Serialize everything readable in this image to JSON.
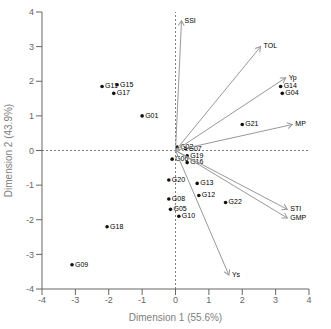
{
  "chart_data": {
    "type": "biplot",
    "xlabel": "Dimension 1 (55.6%)",
    "ylabel": "Dimension 2 (43.9%)",
    "xlim": [
      -4,
      4
    ],
    "ylim": [
      -4,
      4
    ],
    "xticks": [
      -4,
      -3,
      -2,
      -1,
      0,
      1,
      2,
      3,
      4
    ],
    "yticks": [
      -4,
      -3,
      -2,
      -1,
      0,
      1,
      2,
      3,
      4
    ],
    "grid": false,
    "series": [
      {
        "type": "scatter",
        "color": "#111111",
        "points": [
          {
            "label": "G01",
            "x": -1.0,
            "y": 1.0
          },
          {
            "label": "G02",
            "x": 0.05,
            "y": 0.1
          },
          {
            "label": "G04",
            "x": 3.2,
            "y": 1.65
          },
          {
            "label": "G05",
            "x": -0.15,
            "y": -1.7
          },
          {
            "label": "G06",
            "x": -0.1,
            "y": -0.25
          },
          {
            "label": "G07",
            "x": 0.3,
            "y": 0.05
          },
          {
            "label": "G08",
            "x": -0.2,
            "y": -1.4
          },
          {
            "label": "G09",
            "x": -3.1,
            "y": -3.3
          },
          {
            "label": "G10",
            "x": 0.1,
            "y": -1.9
          },
          {
            "label": "G11",
            "x": -2.2,
            "y": 1.85
          },
          {
            "label": "G12",
            "x": 0.7,
            "y": -1.3
          },
          {
            "label": "G13",
            "x": 0.65,
            "y": -0.95
          },
          {
            "label": "G14",
            "x": 3.15,
            "y": 1.85
          },
          {
            "label": "G15",
            "x": -1.75,
            "y": 1.9
          },
          {
            "label": "G16",
            "x": 0.35,
            "y": -0.35
          },
          {
            "label": "G17",
            "x": -1.85,
            "y": 1.65
          },
          {
            "label": "G18",
            "x": -2.05,
            "y": -2.2
          },
          {
            "label": "G19",
            "x": 0.35,
            "y": -0.15
          },
          {
            "label": "G20",
            "x": -0.2,
            "y": -0.85
          },
          {
            "label": "G21",
            "x": 2.0,
            "y": 0.75
          },
          {
            "label": "G22",
            "x": 1.5,
            "y": -1.5
          }
        ]
      },
      {
        "type": "arrow",
        "color": "#999999",
        "points": [
          {
            "label": "SSI",
            "x": 0.18,
            "y": 3.75
          },
          {
            "label": "TOL",
            "x": 2.55,
            "y": 3.0
          },
          {
            "label": "Yp",
            "x": 3.3,
            "y": 2.1
          },
          {
            "label": "MP",
            "x": 3.5,
            "y": 0.75
          },
          {
            "label": "STI",
            "x": 3.35,
            "y": -1.7
          },
          {
            "label": "GMP",
            "x": 3.35,
            "y": -1.95
          },
          {
            "label": "Ys",
            "x": 1.6,
            "y": -3.6
          }
        ]
      }
    ]
  }
}
